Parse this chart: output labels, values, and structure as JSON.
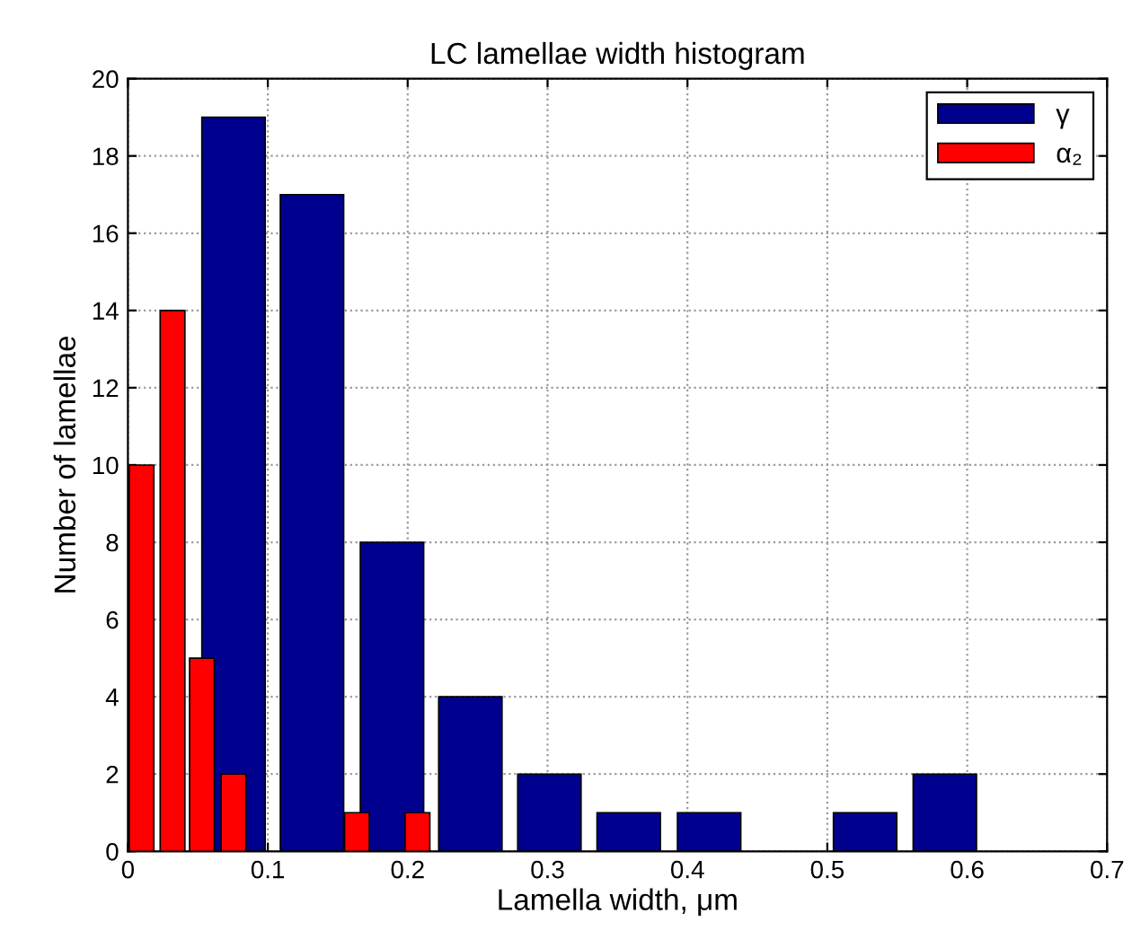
{
  "chart_data": {
    "type": "bar",
    "title": "LC lamellae width histogram",
    "xlabel": "Lamella width, μm",
    "ylabel": "Number of lamellae",
    "series": [
      {
        "name": "γ",
        "color": "#00008f",
        "x": [
          0.0755,
          0.1316,
          0.1888,
          0.2448,
          0.3013,
          0.358,
          0.4155,
          0.527,
          0.584
        ],
        "values": [
          19,
          17,
          8,
          4,
          2,
          1,
          1,
          1,
          2
        ]
      },
      {
        "name": "α₂",
        "color": "#ff0000",
        "x": [
          0.0097,
          0.0319,
          0.0529,
          0.0755,
          0.1637,
          0.207
        ],
        "values": [
          10,
          14,
          5,
          2,
          1,
          1
        ]
      }
    ],
    "xlim": [
      0,
      0.7
    ],
    "xticks": [
      0,
      0.1,
      0.2,
      0.3,
      0.4,
      0.5,
      0.6,
      0.7
    ],
    "ylim": [
      0,
      20
    ],
    "yticks": [
      0,
      2,
      4,
      6,
      8,
      10,
      12,
      14,
      16,
      18,
      20
    ],
    "grid": true,
    "legend": "top right"
  }
}
